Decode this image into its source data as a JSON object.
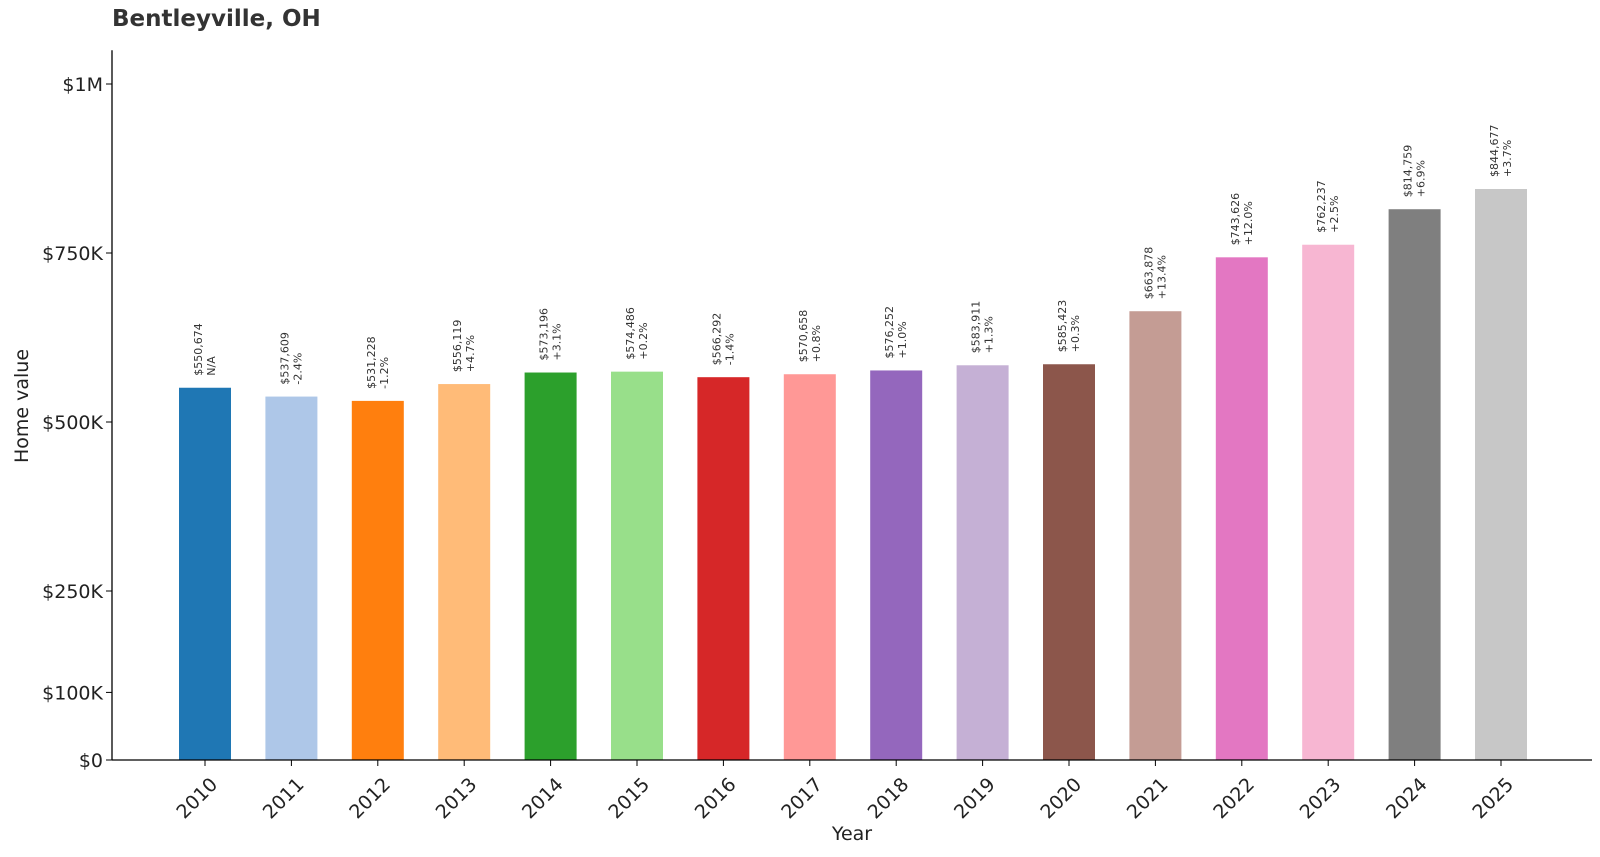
{
  "title": "Bentleyville, OH",
  "chart_data": {
    "type": "bar",
    "title": "Bentleyville, OH",
    "xlabel": "Year",
    "ylabel": "Home value",
    "ylim": [
      0,
      1050000
    ],
    "yticks": [
      {
        "value": 0,
        "label": "$0"
      },
      {
        "value": 100000,
        "label": "$100K"
      },
      {
        "value": 250000,
        "label": "$250K"
      },
      {
        "value": 500000,
        "label": "$500K"
      },
      {
        "value": 750000,
        "label": "$750K"
      },
      {
        "value": 1000000,
        "label": "$1M"
      }
    ],
    "categories": [
      "2010",
      "2011",
      "2012",
      "2013",
      "2014",
      "2015",
      "2016",
      "2017",
      "2018",
      "2019",
      "2020",
      "2021",
      "2022",
      "2023",
      "2024",
      "2025"
    ],
    "values": [
      550674,
      537609,
      531228,
      556119,
      573196,
      574486,
      566292,
      570658,
      576252,
      583911,
      585423,
      663878,
      743626,
      762237,
      814759,
      844677
    ],
    "value_labels": [
      "$550,674",
      "$537,609",
      "$531,228",
      "$556,119",
      "$573,196",
      "$574,486",
      "$566,292",
      "$570,658",
      "$576,252",
      "$583,911",
      "$585,423",
      "$663,878",
      "$743,626",
      "$762,237",
      "$814,759",
      "$844,677"
    ],
    "change_labels": [
      "N/A",
      "-2.4%",
      "-1.2%",
      "+4.7%",
      "+3.1%",
      "+0.2%",
      "-1.4%",
      "+0.8%",
      "+1.0%",
      "+1.3%",
      "+0.3%",
      "+13.4%",
      "+12.0%",
      "+2.5%",
      "+6.9%",
      "+3.7%"
    ],
    "colors": [
      "#1f77b4",
      "#aec7e8",
      "#ff7f0e",
      "#ffbb78",
      "#2ca02c",
      "#98df8a",
      "#d62728",
      "#ff9896",
      "#9467bd",
      "#c5b0d5",
      "#8c564b",
      "#c49c94",
      "#e377c2",
      "#f7b6d2",
      "#7f7f7f",
      "#c7c7c7"
    ],
    "grid": false,
    "legend": "none"
  }
}
